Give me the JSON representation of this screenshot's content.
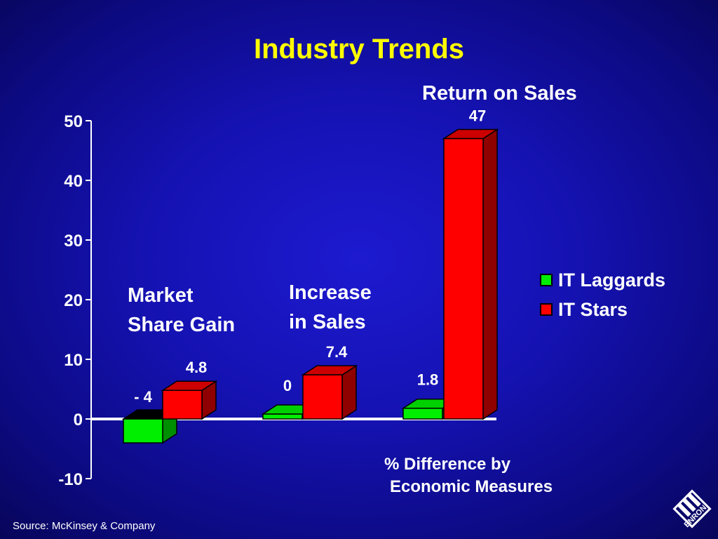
{
  "title": "Industry Trends",
  "colors": {
    "background": "#1512b2",
    "title": "#ffff00",
    "laggards": "#00ee00",
    "stars": "#ff0000",
    "text": "#ffffff"
  },
  "group_labels": {
    "market_share_line1": "Market",
    "market_share_line2": "Share Gain",
    "sales_line1": "Increase",
    "sales_line2": "in Sales",
    "return": "Return on Sales"
  },
  "axis_title_line1": "% Difference by",
  "axis_title_line2": "Economic Measures",
  "source": "Source:  McKinsey & Company",
  "logo_text": "ENRON",
  "chart_data": {
    "type": "bar",
    "categories": [
      "Market Share Gain",
      "Increase in Sales",
      "Return on Sales"
    ],
    "series": [
      {
        "name": "IT Laggards",
        "values": [
          -4,
          0,
          1.8
        ],
        "labels": [
          "- 4",
          "0",
          "1.8"
        ]
      },
      {
        "name": "IT Stars",
        "values": [
          4.8,
          7.4,
          47
        ],
        "labels": [
          "4.8",
          "7.4",
          "47"
        ]
      }
    ],
    "ylim": [
      -10,
      50
    ],
    "yticks": [
      50,
      40,
      30,
      20,
      10,
      0,
      -10
    ],
    "grid": false,
    "legend_position": "right"
  }
}
